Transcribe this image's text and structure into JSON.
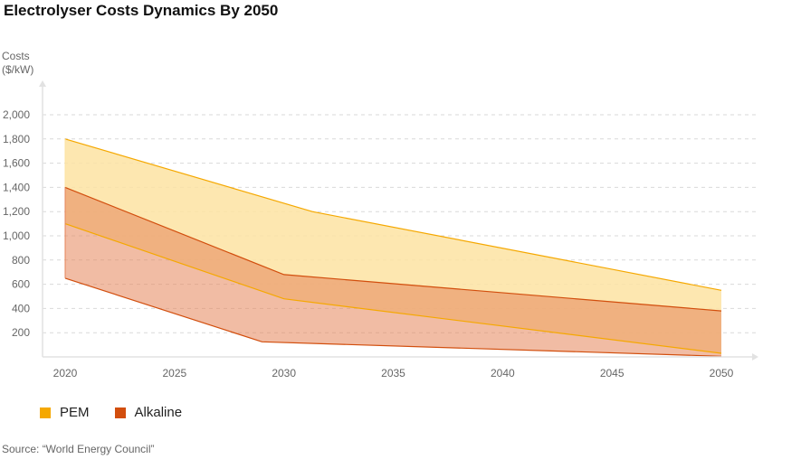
{
  "title": "Electrolyser Costs Dynamics By 2050",
  "ylabel_line1": "Costs",
  "ylabel_line2": "($/kW)",
  "source": "Source: “World Energy Council”",
  "chart_data": {
    "type": "area",
    "title": "Electrolyser Costs Dynamics By 2050",
    "ylabel": "Costs ($/kW)",
    "xlabel": "",
    "x_ticks": [
      2020,
      2025,
      2030,
      2035,
      2040,
      2045,
      2050
    ],
    "y_ticks": [
      200,
      400,
      600,
      800,
      1000,
      1200,
      1400,
      1600,
      1800,
      2000
    ],
    "xlim": [
      2020,
      2050
    ],
    "ylim": [
      0,
      2200
    ],
    "grid": true,
    "legend_position": "bottom-left",
    "series": [
      {
        "name": "PEM",
        "color": "#F5A800",
        "fill": "#FDE3A2",
        "upper": [
          [
            2020,
            1800
          ],
          [
            2031.3,
            1200
          ],
          [
            2050,
            550
          ]
        ],
        "lower": [
          [
            2020,
            1100
          ],
          [
            2030,
            480
          ],
          [
            2050,
            30
          ]
        ]
      },
      {
        "name": "Alkaline",
        "color": "#D24E0D",
        "fill": "#E6855A",
        "upper": [
          [
            2020,
            1400
          ],
          [
            2030,
            680
          ],
          [
            2050,
            380
          ]
        ],
        "lower": [
          [
            2020,
            650
          ],
          [
            2029,
            125
          ],
          [
            2050,
            5
          ]
        ]
      }
    ]
  }
}
